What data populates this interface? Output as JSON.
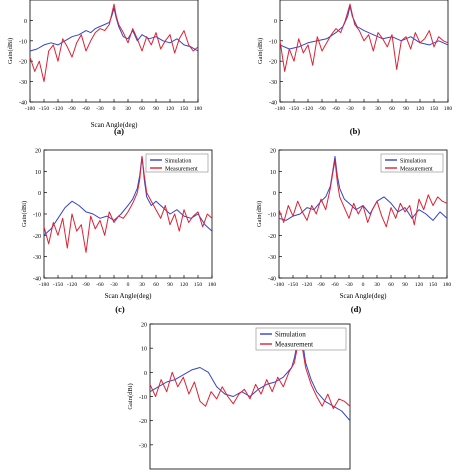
{
  "colors": {
    "simulation": "#3344cc",
    "measurement": "#dd2233",
    "axis": "#000000"
  },
  "panels": [
    {
      "label": "(a)",
      "xlabel": "Scan Angle(deg)",
      "ylabel": "Gain(dBi)",
      "legend": null
    },
    {
      "label": "(b)",
      "xlabel": "",
      "ylabel": "Gain(dBi)",
      "legend": null
    },
    {
      "label": "(c)",
      "xlabel": "Scan Angle(deg)",
      "ylabel": "Gain(dBi)",
      "legend": [
        "Simulation",
        "Measurement"
      ]
    },
    {
      "label": "(d)",
      "xlabel": "Scan Angle(deg)",
      "ylabel": "Gain(dBi)",
      "legend": [
        "Simulation",
        "Measurement"
      ]
    },
    {
      "label": "",
      "xlabel": "",
      "ylabel": "Gain(dBi)",
      "legend": [
        "Simulation",
        "Measurement"
      ]
    }
  ],
  "chart_data": [
    {
      "type": "line",
      "panel": "(a)",
      "xlabel": "Scan Angle(deg)",
      "ylabel": "Gain(dBi)",
      "xlim": [
        -180,
        180
      ],
      "ylim": [
        -40,
        10
      ],
      "xticks": [
        -180,
        -150,
        -120,
        -90,
        -60,
        -30,
        0,
        30,
        60,
        90,
        120,
        150,
        180
      ],
      "yticks": [
        -40,
        -30,
        -20,
        -10,
        0
      ],
      "series": [
        {
          "name": "Simulation",
          "x": [
            -180,
            -165,
            -150,
            -135,
            -120,
            -105,
            -90,
            -75,
            -60,
            -50,
            -40,
            -30,
            -20,
            -10,
            -5,
            0,
            5,
            10,
            20,
            30,
            40,
            50,
            60,
            75,
            90,
            105,
            120,
            135,
            150,
            165,
            180
          ],
          "y": [
            -15,
            -14,
            -12,
            -11,
            -12,
            -10,
            -8,
            -7,
            -5,
            -6,
            -4,
            -3,
            -2,
            -1,
            2,
            6,
            1,
            -3,
            -8,
            -9,
            -5,
            -10,
            -7,
            -9,
            -8,
            -10,
            -11,
            -9,
            -12,
            -13,
            -15
          ]
        },
        {
          "name": "Measurement",
          "x": [
            -180,
            -170,
            -160,
            -150,
            -140,
            -130,
            -120,
            -110,
            -100,
            -90,
            -80,
            -70,
            -60,
            -50,
            -40,
            -30,
            -20,
            -10,
            -5,
            0,
            5,
            10,
            20,
            30,
            40,
            50,
            60,
            70,
            80,
            90,
            100,
            110,
            120,
            130,
            140,
            150,
            160,
            170,
            180
          ],
          "y": [
            -18,
            -25,
            -20,
            -30,
            -15,
            -12,
            -20,
            -9,
            -13,
            -18,
            -11,
            -7,
            -15,
            -10,
            -6,
            -4,
            -5,
            -2,
            3,
            8,
            2,
            -2,
            -6,
            -11,
            -4,
            -9,
            -15,
            -8,
            -12,
            -6,
            -14,
            -10,
            -7,
            -16,
            -9,
            -5,
            -12,
            -15,
            -13
          ]
        }
      ]
    },
    {
      "type": "line",
      "panel": "(b)",
      "xlabel": "",
      "ylabel": "Gain(dBi)",
      "xlim": [
        -180,
        180
      ],
      "ylim": [
        -40,
        10
      ],
      "xticks": [
        -180,
        -150,
        -120,
        -90,
        -60,
        -30,
        0,
        30,
        60,
        90,
        120,
        150,
        180
      ],
      "yticks": [
        -40,
        -30,
        -20,
        -10,
        0
      ],
      "series": [
        {
          "name": "Simulation",
          "x": [
            -180,
            -160,
            -140,
            -120,
            -100,
            -80,
            -60,
            -45,
            -35,
            -30,
            -25,
            -15,
            0,
            20,
            40,
            60,
            80,
            100,
            120,
            140,
            160,
            180
          ],
          "y": [
            -12,
            -14,
            -13,
            -11,
            -10,
            -9,
            -6,
            -3,
            2,
            7,
            2,
            -3,
            -5,
            -7,
            -9,
            -8,
            -10,
            -8,
            -11,
            -12,
            -10,
            -12
          ]
        },
        {
          "name": "Measurement",
          "x": [
            -180,
            -170,
            -160,
            -150,
            -140,
            -130,
            -120,
            -110,
            -100,
            -90,
            -80,
            -70,
            -60,
            -50,
            -40,
            -35,
            -30,
            -25,
            -20,
            -10,
            0,
            10,
            20,
            30,
            40,
            50,
            60,
            70,
            80,
            90,
            100,
            110,
            120,
            130,
            140,
            150,
            160,
            170,
            180
          ],
          "y": [
            -10,
            -25,
            -14,
            -20,
            -9,
            -16,
            -12,
            -22,
            -8,
            -15,
            -11,
            -7,
            -4,
            -6,
            0,
            4,
            8,
            3,
            -2,
            -5,
            -10,
            -7,
            -15,
            -6,
            -9,
            -13,
            -7,
            -24,
            -10,
            -8,
            -14,
            -6,
            -11,
            -9,
            -5,
            -13,
            -8,
            -10,
            -11
          ]
        }
      ]
    },
    {
      "type": "line",
      "panel": "(c)",
      "xlabel": "Scan Angle(deg)",
      "ylabel": "Gain(dBi)",
      "xlim": [
        -180,
        180
      ],
      "ylim": [
        -40,
        20
      ],
      "xticks": [
        -180,
        -150,
        -120,
        -90,
        -60,
        -30,
        0,
        30,
        60,
        90,
        120,
        150,
        180
      ],
      "yticks": [
        -40,
        -30,
        -20,
        -10,
        0,
        10,
        20
      ],
      "series": [
        {
          "name": "Simulation",
          "x": [
            -180,
            -165,
            -150,
            -135,
            -120,
            -105,
            -90,
            -75,
            -60,
            -45,
            -30,
            -15,
            0,
            10,
            20,
            25,
            30,
            35,
            40,
            50,
            60,
            75,
            90,
            105,
            120,
            135,
            150,
            165,
            180
          ],
          "y": [
            -20,
            -17,
            -12,
            -7,
            -4,
            -6,
            -9,
            -10,
            -12,
            -11,
            -13,
            -10,
            -6,
            -3,
            2,
            8,
            17,
            6,
            -2,
            -6,
            -4,
            -7,
            -10,
            -8,
            -11,
            -12,
            -10,
            -15,
            -18
          ]
        },
        {
          "name": "Measurement",
          "x": [
            -180,
            -170,
            -160,
            -150,
            -140,
            -130,
            -120,
            -110,
            -100,
            -90,
            -80,
            -70,
            -60,
            -50,
            -40,
            -30,
            -20,
            -10,
            0,
            10,
            20,
            25,
            30,
            35,
            40,
            50,
            60,
            70,
            80,
            90,
            100,
            110,
            120,
            130,
            140,
            150,
            160,
            170,
            180
          ],
          "y": [
            -16,
            -24,
            -14,
            -20,
            -12,
            -26,
            -10,
            -18,
            -15,
            -28,
            -11,
            -17,
            -13,
            -20,
            -9,
            -14,
            -11,
            -12,
            -9,
            -5,
            0,
            6,
            17,
            8,
            0,
            -4,
            -8,
            -12,
            -6,
            -15,
            -10,
            -18,
            -8,
            -14,
            -11,
            -9,
            -16,
            -10,
            -12
          ]
        }
      ]
    },
    {
      "type": "line",
      "panel": "(d)",
      "xlabel": "Scan Angle(deg)",
      "ylabel": "Gain(dBi)",
      "xlim": [
        -180,
        180
      ],
      "ylim": [
        -40,
        20
      ],
      "xticks": [
        -180,
        -150,
        -120,
        -90,
        -60,
        -30,
        0,
        30,
        60,
        90,
        120,
        150,
        180
      ],
      "yticks": [
        -40,
        -30,
        -20,
        -10,
        0,
        10,
        20
      ],
      "series": [
        {
          "name": "Simulation",
          "x": [
            -180,
            -165,
            -150,
            -135,
            -120,
            -105,
            -90,
            -80,
            -70,
            -65,
            -60,
            -55,
            -50,
            -40,
            -30,
            -15,
            0,
            15,
            30,
            45,
            60,
            75,
            90,
            105,
            120,
            135,
            150,
            165,
            180
          ],
          "y": [
            -12,
            -13,
            -11,
            -10,
            -7,
            -8,
            -4,
            -2,
            3,
            10,
            17,
            8,
            2,
            -3,
            -5,
            -8,
            -6,
            -10,
            -4,
            -2,
            -5,
            -9,
            -7,
            -12,
            -8,
            -10,
            -13,
            -9,
            -12
          ]
        },
        {
          "name": "Measurement",
          "x": [
            -180,
            -170,
            -160,
            -150,
            -140,
            -130,
            -120,
            -110,
            -100,
            -90,
            -80,
            -70,
            -65,
            -60,
            -55,
            -50,
            -40,
            -30,
            -20,
            -10,
            0,
            10,
            20,
            30,
            40,
            50,
            60,
            70,
            80,
            90,
            100,
            110,
            120,
            130,
            140,
            150,
            160,
            170,
            180
          ],
          "y": [
            -8,
            -14,
            -6,
            -11,
            -4,
            -9,
            -13,
            -6,
            -10,
            -3,
            -8,
            2,
            9,
            15,
            5,
            -2,
            -7,
            -12,
            -5,
            -10,
            -6,
            -14,
            -8,
            -4,
            -11,
            -16,
            -7,
            -12,
            -5,
            -9,
            -6,
            -15,
            -3,
            -8,
            -1,
            -6,
            -2,
            -4,
            -5
          ]
        }
      ]
    },
    {
      "type": "line",
      "panel": "",
      "xlabel": "",
      "ylabel": "Gain(dBi)",
      "xlim": [
        -180,
        180
      ],
      "ylim": [
        -40,
        20
      ],
      "xticks": [],
      "yticks": [
        -30,
        -20,
        -10,
        0,
        10,
        20
      ],
      "series": [
        {
          "name": "Simulation",
          "x": [
            -180,
            -165,
            -150,
            -135,
            -120,
            -105,
            -90,
            -75,
            -60,
            -45,
            -30,
            -15,
            0,
            15,
            30,
            45,
            60,
            75,
            80,
            85,
            90,
            95,
            100,
            110,
            120,
            135,
            150,
            165,
            180
          ],
          "y": [
            -8,
            -6,
            -4,
            -3,
            -1,
            1,
            2,
            0,
            -6,
            -9,
            -10,
            -8,
            -10,
            -7,
            -5,
            -4,
            -2,
            2,
            6,
            12,
            17,
            12,
            4,
            -3,
            -8,
            -12,
            -14,
            -16,
            -20
          ]
        },
        {
          "name": "Measurement",
          "x": [
            -180,
            -170,
            -160,
            -150,
            -140,
            -130,
            -120,
            -110,
            -100,
            -90,
            -80,
            -70,
            -60,
            -50,
            -40,
            -30,
            -20,
            -10,
            0,
            10,
            20,
            30,
            40,
            50,
            60,
            70,
            80,
            85,
            90,
            95,
            100,
            110,
            120,
            130,
            140,
            150,
            160,
            170,
            180
          ],
          "y": [
            -5,
            -10,
            -3,
            -8,
            0,
            -6,
            -2,
            -9,
            -4,
            -12,
            -14,
            -8,
            -11,
            -6,
            -10,
            -13,
            -9,
            -7,
            -11,
            -5,
            -9,
            -3,
            -8,
            -2,
            -6,
            0,
            4,
            10,
            15,
            9,
            2,
            -5,
            -10,
            -14,
            -9,
            -15,
            -11,
            -12,
            -14
          ]
        }
      ]
    }
  ]
}
